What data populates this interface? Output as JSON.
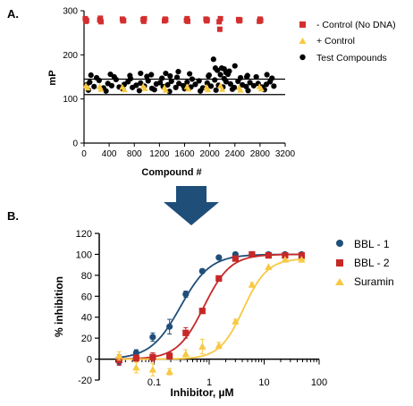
{
  "panel_a": {
    "label": "A.",
    "legend": [
      {
        "label": "- Control (No DNA)",
        "color": "#d32f2f",
        "marker": "square"
      },
      {
        "label": "+ Control",
        "color": "#f7c942",
        "marker": "triangle"
      },
      {
        "label": "Test Compounds",
        "color": "#000000",
        "marker": "circle"
      }
    ]
  },
  "panel_b": {
    "label": "B."
  },
  "arrow_color": "#1f4e79",
  "chart_data": [
    {
      "type": "scatter",
      "xlabel": "Compound #",
      "ylabel": "mP",
      "xlim": [
        0,
        3200
      ],
      "ylim": [
        0,
        300
      ],
      "xticks": [
        0,
        400,
        800,
        1200,
        1600,
        2000,
        2400,
        2800,
        3200
      ],
      "yticks": [
        0,
        100,
        200,
        300
      ],
      "reference_lines": [
        110,
        145
      ],
      "grid": false,
      "legend_position": "right",
      "series": [
        {
          "name": "- Control (No DNA)",
          "marker": "square",
          "color": "#d32f2f",
          "x": [
            20,
            30,
            40,
            250,
            260,
            270,
            610,
            620,
            630,
            940,
            950,
            960,
            1280,
            1290,
            1300,
            1630,
            1640,
            1650,
            1940,
            1950,
            1960,
            2150,
            2160,
            2170,
            2460,
            2470,
            2480,
            2790,
            2800,
            2810
          ],
          "y": [
            282,
            276,
            278,
            279,
            283,
            275,
            281,
            277,
            278,
            280,
            276,
            282,
            277,
            281,
            279,
            278,
            282,
            276,
            281,
            277,
            279,
            275,
            258,
            282,
            280,
            277,
            279,
            276,
            281,
            278
          ]
        },
        {
          "name": "+ Control",
          "marker": "triangle",
          "color": "#f7c942",
          "x": [
            30,
            60,
            250,
            270,
            610,
            640,
            940,
            970,
            1280,
            1300,
            1640,
            1660,
            1950,
            1970,
            2170,
            2200,
            2470,
            2490,
            2790,
            2820
          ],
          "y": [
            130,
            125,
            128,
            122,
            127,
            121,
            129,
            124,
            126,
            120,
            128,
            123,
            127,
            121,
            130,
            122,
            126,
            120,
            128,
            123
          ]
        },
        {
          "name": "Test Compounds",
          "marker": "circle",
          "color": "#000000",
          "x": [
            40,
            90,
            160,
            240,
            310,
            380,
            440,
            510,
            560,
            640,
            700,
            770,
            830,
            900,
            960,
            1020,
            1080,
            1150,
            1210,
            1260,
            1330,
            1390,
            1460,
            1510,
            1580,
            1640,
            1700,
            1770,
            1830,
            1890,
            1960,
            2020,
            2080,
            2140,
            2210,
            2260,
            2330,
            2390,
            2450,
            2520,
            2580,
            2640,
            2700,
            2770,
            2830,
            2900,
            2960,
            3020,
            70,
            200,
            350,
            480,
            620,
            740,
            880,
            1000,
            1120,
            1240,
            1360,
            1480,
            1600,
            1720,
            1850,
            1980,
            2100,
            2230,
            2360,
            2490,
            2610,
            2740,
            2870,
            2990,
            110,
            420,
            730,
            1070,
            1370,
            1680,
            1990,
            2290,
            2600,
            2910,
            2060,
            2190,
            2260,
            2310,
            1300,
            2090,
            2120,
            2400,
            2590,
            2170,
            2230,
            900,
            1500
          ],
          "y": [
            132,
            138,
            128,
            142,
            125,
            135,
            130,
            144,
            127,
            133,
            139,
            126,
            131,
            136,
            129,
            141,
            124,
            134,
            137,
            128,
            132,
            140,
            126,
            135,
            130,
            138,
            127,
            133,
            141,
            125,
            136,
            129,
            143,
            131,
            127,
            139,
            134,
            126,
            140,
            132,
            128,
            137,
            130,
            135,
            127,
            133,
            139,
            129,
            120,
            148,
            118,
            150,
            122,
            146,
            119,
            151,
            121,
            147,
            117,
            149,
            123,
            145,
            118,
            152,
            120,
            146,
            122,
            148,
            119,
            150,
            121,
            147,
            154,
            156,
            153,
            155,
            152,
            157,
            154,
            156,
            153,
            155,
            190,
            170,
            160,
            163,
            158,
            170,
            165,
            175,
            150,
            155,
            168,
            158,
            162
          ]
        }
      ]
    },
    {
      "type": "line",
      "xlabel": "Inhibitor, µM",
      "ylabel": "% inhibition",
      "xscale": "log",
      "xlim": [
        0.01,
        100
      ],
      "ylim": [
        -20,
        120
      ],
      "xticks": [
        0.1,
        1,
        10,
        100
      ],
      "yticks": [
        -20,
        0,
        20,
        40,
        60,
        80,
        100,
        120
      ],
      "grid": false,
      "legend_position": "right",
      "series": [
        {
          "name": "BBL - 1",
          "marker": "circle",
          "color": "#1f4e79",
          "x": [
            0.023,
            0.047,
            0.094,
            0.19,
            0.375,
            0.75,
            1.5,
            3,
            6,
            12,
            24,
            48
          ],
          "y": [
            -2,
            6,
            21,
            31,
            62,
            84,
            97,
            100,
            100,
            100,
            100,
            100
          ],
          "err": [
            3,
            3,
            4,
            7,
            3,
            2,
            1,
            1,
            1,
            1,
            1,
            1
          ],
          "fit": {
            "bottom": 0,
            "top": 100,
            "ic50": 0.3,
            "hill": 1.6
          }
        },
        {
          "name": "BBL - 2",
          "marker": "square",
          "color": "#c62828",
          "x": [
            0.023,
            0.047,
            0.094,
            0.19,
            0.375,
            0.75,
            1.5,
            3,
            6,
            12,
            24,
            48
          ],
          "y": [
            -1,
            1,
            2,
            3,
            25,
            46,
            77,
            96,
            100,
            99,
            99,
            99
          ],
          "err": [
            5,
            3,
            4,
            3,
            5,
            2,
            2,
            1,
            1,
            1,
            1,
            1
          ],
          "fit": {
            "bottom": 0,
            "top": 100,
            "ic50": 0.8,
            "hill": 1.8
          }
        },
        {
          "name": "Suramin",
          "marker": "triangle",
          "color": "#f7c942",
          "x": [
            0.023,
            0.047,
            0.094,
            0.19,
            0.375,
            0.75,
            1.5,
            3,
            6,
            12,
            24,
            48
          ],
          "y": [
            3,
            -8,
            -10,
            -12,
            5,
            12,
            13,
            36,
            71,
            88,
            95,
            95
          ],
          "err": [
            4,
            5,
            6,
            3,
            4,
            7,
            3,
            2,
            2,
            1,
            1,
            1
          ],
          "fit": {
            "bottom": 0,
            "top": 96,
            "ic50": 4.2,
            "hill": 2.0
          }
        }
      ]
    }
  ]
}
